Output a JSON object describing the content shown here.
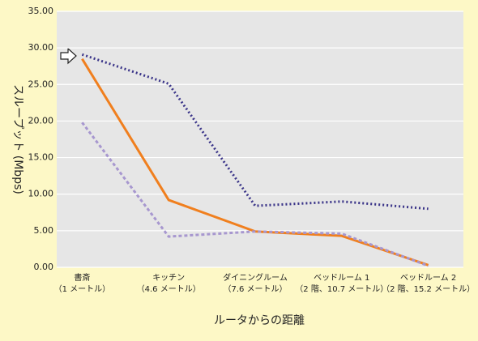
{
  "chart_data": {
    "type": "line",
    "y_label": "スループット (Mbps)",
    "x_label": "ルータからの距離",
    "categories": [
      "書斎",
      "キッチン",
      "ダイニングルーム",
      "ベッドルーム 1",
      "ベッドルーム 2"
    ],
    "category_details": [
      "（1 メートル）",
      "（4.6 メートル）",
      "（7.6 メートル）",
      "（2 階、10.7 メートル）",
      "（2 階、15.2 メートル）"
    ],
    "series": [
      {
        "color": "#3b3589",
        "dash": "2 3",
        "values": [
          29.1,
          25.1,
          8.4,
          9.0,
          8.0
        ]
      },
      {
        "color": "#f07f1e",
        "dash": "none",
        "values": [
          28.5,
          9.2,
          4.9,
          4.3,
          0.3
        ]
      },
      {
        "color": "#a797cf",
        "dash": "4 3",
        "values": [
          19.8,
          4.2,
          4.9,
          4.6,
          0.2
        ]
      }
    ],
    "ylim": [
      0,
      35
    ],
    "yticks": [
      {
        "value": 0,
        "label": "0.00"
      },
      {
        "value": 5,
        "label": "5.00"
      },
      {
        "value": 10,
        "label": "10.00"
      },
      {
        "value": 15,
        "label": "15.00"
      },
      {
        "value": 20,
        "label": "20.00"
      },
      {
        "value": 25,
        "label": "25.00"
      },
      {
        "value": 30,
        "label": "30.00"
      },
      {
        "value": 35,
        "label": "35.00"
      }
    ],
    "grid": true
  }
}
